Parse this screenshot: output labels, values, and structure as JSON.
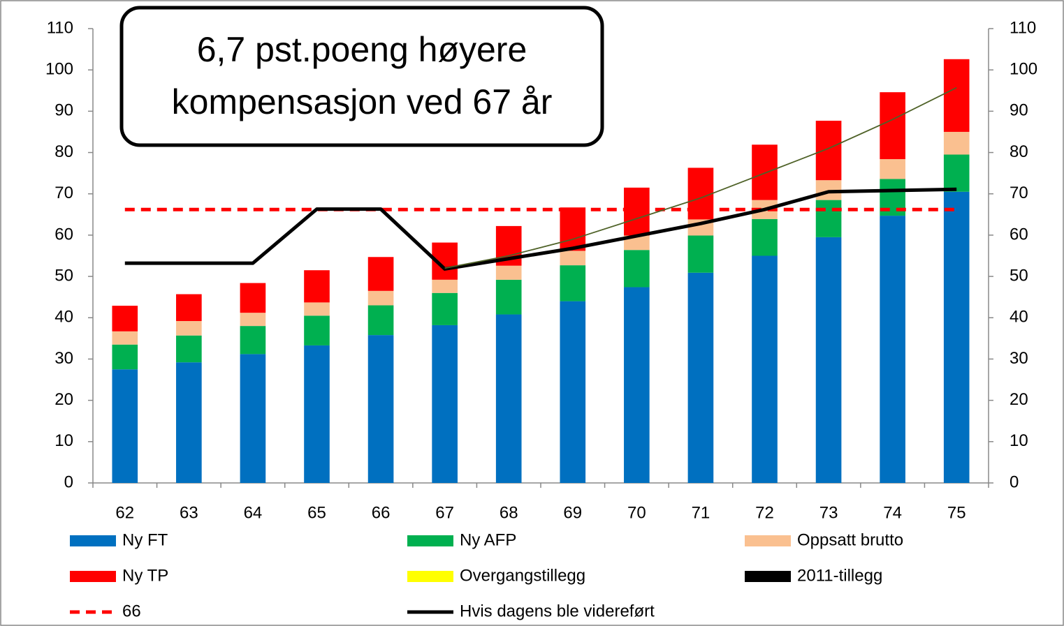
{
  "chart_data": {
    "type": "bar",
    "annotation": [
      "6,7 pst.poeng høyere",
      "kompensasjon ved 67 år"
    ],
    "categories": [
      "62",
      "63",
      "64",
      "65",
      "66",
      "67",
      "68",
      "69",
      "70",
      "71",
      "72",
      "73",
      "74",
      "75"
    ],
    "ylim": [
      0,
      110
    ],
    "yticks": [
      0,
      10,
      20,
      30,
      40,
      50,
      60,
      70,
      80,
      90,
      100,
      110
    ],
    "y2lim": [
      0,
      110
    ],
    "y2ticks": [
      0,
      10,
      20,
      30,
      40,
      50,
      60,
      70,
      80,
      90,
      100,
      110
    ],
    "stacked": true,
    "series": [
      {
        "name": "Ny FT",
        "type": "bar",
        "color": "#0070c0",
        "values": [
          27.5,
          29.2,
          31.2,
          33.3,
          35.8,
          38.2,
          40.8,
          44.0,
          47.4,
          50.9,
          55.0,
          59.5,
          64.7,
          70.5
        ]
      },
      {
        "name": "Ny AFP",
        "type": "bar",
        "color": "#00b050",
        "values": [
          6.0,
          6.5,
          6.8,
          7.2,
          7.2,
          7.8,
          8.4,
          8.7,
          9.0,
          9.0,
          8.9,
          9.0,
          8.9,
          9.0
        ]
      },
      {
        "name": "Oppsatt brutto",
        "type": "bar",
        "color": "#fac090",
        "values": [
          3.2,
          3.5,
          3.2,
          3.2,
          3.5,
          3.2,
          3.4,
          3.5,
          3.5,
          3.9,
          4.6,
          4.8,
          4.8,
          5.5
        ]
      },
      {
        "name": "Ny TP",
        "type": "bar",
        "color": "#ff0000",
        "values": [
          6.2,
          6.5,
          7.2,
          7.8,
          8.2,
          9.0,
          9.6,
          10.5,
          11.6,
          12.5,
          13.4,
          14.4,
          16.2,
          17.6
        ]
      },
      {
        "name": "Overgangstillegg",
        "type": "bar",
        "color": "#ffff00",
        "values": [
          0,
          0,
          0,
          0,
          0,
          0,
          0,
          0,
          0,
          0,
          0,
          0,
          0,
          0
        ]
      },
      {
        "name": "2011-tillegg",
        "type": "bar",
        "color": "#000000",
        "values": [
          0,
          0,
          0,
          0,
          0,
          0,
          0,
          0,
          0,
          0,
          0,
          0,
          0,
          0
        ]
      },
      {
        "name": "66",
        "type": "line",
        "dashed": true,
        "color": "#ff0000",
        "values": [
          66.2,
          66.2,
          66.2,
          66.2,
          66.2,
          66.2,
          66.2,
          66.2,
          66.2,
          66.2,
          66.2,
          66.2,
          66.2,
          66.2
        ]
      },
      {
        "name": "Hvis dagens ble videreført",
        "type": "line",
        "color": "#000000",
        "values": [
          53.2,
          53.2,
          53.2,
          66.3,
          66.3,
          51.8,
          54.3,
          56.8,
          59.8,
          62.8,
          66.2,
          70.5,
          70.8,
          71.1
        ]
      },
      {
        "type": "line",
        "thin": true,
        "color": "#4f6228",
        "values": [
          null,
          null,
          null,
          null,
          null,
          52.0,
          55.0,
          59.0,
          64.0,
          69.0,
          75.0,
          81.0,
          88.0,
          95.7
        ]
      }
    ]
  }
}
